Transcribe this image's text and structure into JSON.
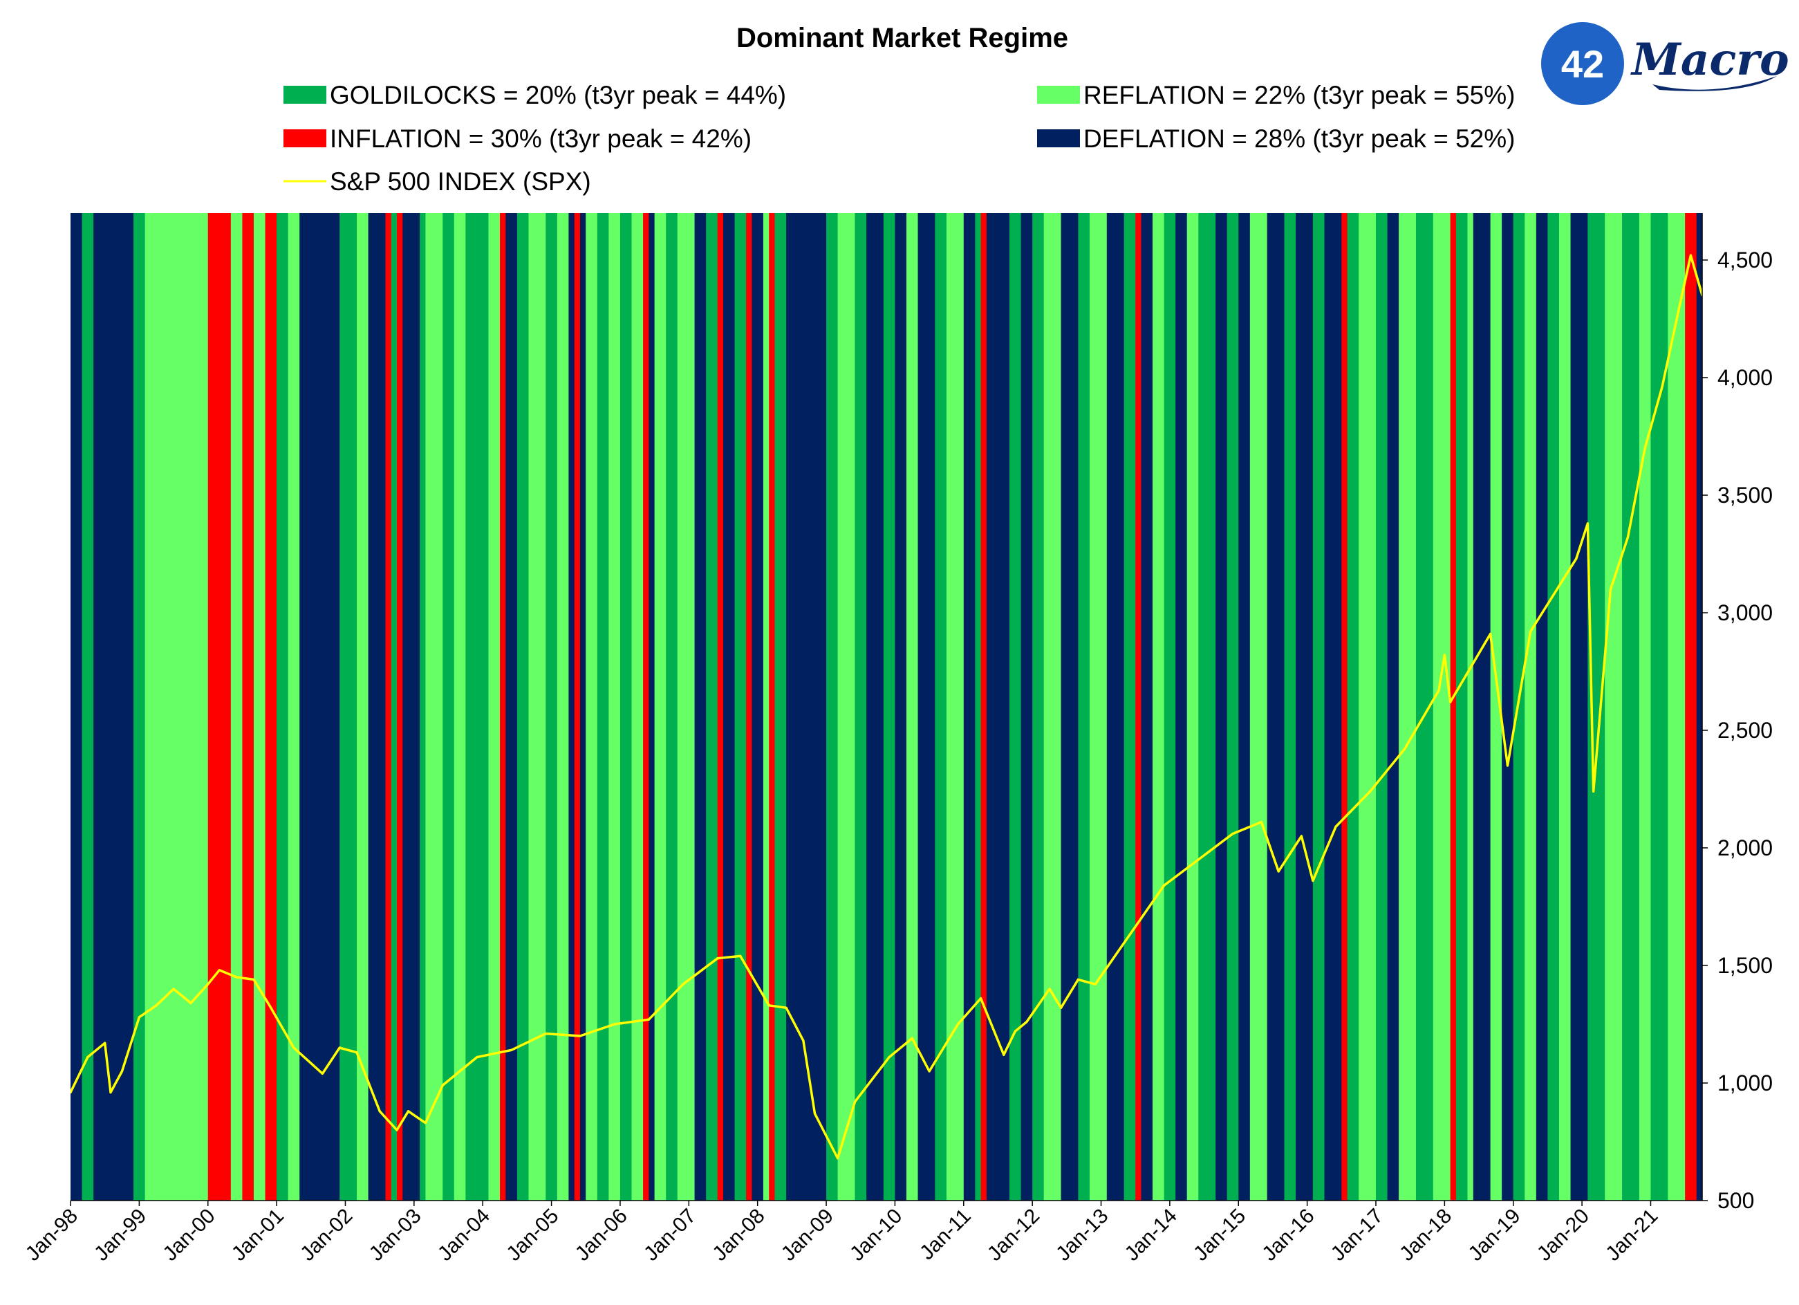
{
  "logo": {
    "badge": "42",
    "wordmark": "Macro"
  },
  "chart_data": {
    "type": "line",
    "title": "Dominant Market Regime",
    "xlabel": "",
    "ylabel": "",
    "y_axis_side": "right",
    "ylim": [
      500,
      4700
    ],
    "x_range": [
      "1998-01",
      "2021-10"
    ],
    "yticks": [
      "4,500",
      "4,000",
      "3,500",
      "3,000",
      "2,500",
      "2,000",
      "1,500",
      "1,000",
      "500"
    ],
    "ytick_values": [
      4500,
      4000,
      3500,
      3000,
      2500,
      2000,
      1500,
      1000,
      500
    ],
    "xticks": [
      "Jan-98",
      "Jan-99",
      "Jan-00",
      "Jan-01",
      "Jan-02",
      "Jan-03",
      "Jan-04",
      "Jan-05",
      "Jan-06",
      "Jan-07",
      "Jan-08",
      "Jan-09",
      "Jan-10",
      "Jan-11",
      "Jan-12",
      "Jan-13",
      "Jan-14",
      "Jan-15",
      "Jan-16",
      "Jan-17",
      "Jan-18",
      "Jan-19",
      "Jan-20",
      "Jan-21"
    ],
    "legend": [
      {
        "key": "goldilocks",
        "label": "GOLDILOCKS = 20% (t3yr peak = 44%)",
        "color": "#00b050",
        "kind": "box"
      },
      {
        "key": "reflation",
        "label": "REFLATION = 22% (t3yr peak = 55%)",
        "color": "#66ff66",
        "kind": "box"
      },
      {
        "key": "inflation",
        "label": "INFLATION = 30% (t3yr peak = 42%)",
        "color": "#ff0000",
        "kind": "box"
      },
      {
        "key": "deflation",
        "label": "DEFLATION = 28% (t3yr peak = 52%)",
        "color": "#002060",
        "kind": "box"
      },
      {
        "key": "spx",
        "label": "S&P 500 INDEX (SPX)",
        "color": "#ffff00",
        "kind": "line"
      }
    ],
    "regime_colors": {
      "G": "#00b050",
      "R": "#66ff66",
      "I": "#ff0000",
      "D": "#002060"
    },
    "regimes": [
      [
        "1998-01",
        "D"
      ],
      [
        "1998-03",
        "G"
      ],
      [
        "1998-05",
        "D"
      ],
      [
        "1998-06",
        "D"
      ],
      [
        "1998-09",
        "D"
      ],
      [
        "1998-12",
        "G"
      ],
      [
        "1999-02",
        "R"
      ],
      [
        "1999-06",
        "R"
      ],
      [
        "1999-09",
        "R"
      ],
      [
        "2000-01",
        "I"
      ],
      [
        "2000-03",
        "I"
      ],
      [
        "2000-05",
        "R"
      ],
      [
        "2000-07",
        "I"
      ],
      [
        "2000-09",
        "R"
      ],
      [
        "2000-11",
        "I"
      ],
      [
        "2001-01",
        "G"
      ],
      [
        "2001-03",
        "R"
      ],
      [
        "2001-05",
        "D"
      ],
      [
        "2001-09",
        "D"
      ],
      [
        "2001-12",
        "G"
      ],
      [
        "2002-03",
        "R"
      ],
      [
        "2002-05",
        "D"
      ],
      [
        "2002-08",
        "I"
      ],
      [
        "2002-09",
        "G"
      ],
      [
        "2002-10",
        "I"
      ],
      [
        "2002-11",
        "D"
      ],
      [
        "2003-02",
        "G"
      ],
      [
        "2003-03",
        "R"
      ],
      [
        "2003-06",
        "G"
      ],
      [
        "2003-08",
        "R"
      ],
      [
        "2003-10",
        "G"
      ],
      [
        "2004-02",
        "R"
      ],
      [
        "2004-04",
        "I"
      ],
      [
        "2004-05",
        "D"
      ],
      [
        "2004-07",
        "G"
      ],
      [
        "2004-09",
        "R"
      ],
      [
        "2004-12",
        "G"
      ],
      [
        "2005-02",
        "R"
      ],
      [
        "2005-04",
        "D"
      ],
      [
        "2005-05",
        "I"
      ],
      [
        "2005-06",
        "D"
      ],
      [
        "2005-07",
        "R"
      ],
      [
        "2005-09",
        "G"
      ],
      [
        "2005-11",
        "R"
      ],
      [
        "2006-01",
        "G"
      ],
      [
        "2006-03",
        "R"
      ],
      [
        "2006-05",
        "I"
      ],
      [
        "2006-06",
        "D"
      ],
      [
        "2006-07",
        "R"
      ],
      [
        "2006-09",
        "G"
      ],
      [
        "2006-11",
        "R"
      ],
      [
        "2007-02",
        "D"
      ],
      [
        "2007-04",
        "G"
      ],
      [
        "2007-06",
        "I"
      ],
      [
        "2007-07",
        "D"
      ],
      [
        "2007-09",
        "G"
      ],
      [
        "2007-11",
        "I"
      ],
      [
        "2007-12",
        "D"
      ],
      [
        "2008-02",
        "R"
      ],
      [
        "2008-03",
        "I"
      ],
      [
        "2008-04",
        "G"
      ],
      [
        "2008-06",
        "D"
      ],
      [
        "2008-09",
        "D"
      ],
      [
        "2009-01",
        "G"
      ],
      [
        "2009-03",
        "R"
      ],
      [
        "2009-06",
        "G"
      ],
      [
        "2009-08",
        "D"
      ],
      [
        "2009-11",
        "G"
      ],
      [
        "2010-01",
        "D"
      ],
      [
        "2010-03",
        "R"
      ],
      [
        "2010-05",
        "D"
      ],
      [
        "2010-08",
        "G"
      ],
      [
        "2010-10",
        "R"
      ],
      [
        "2011-01",
        "D"
      ],
      [
        "2011-03",
        "G"
      ],
      [
        "2011-04",
        "I"
      ],
      [
        "2011-05",
        "D"
      ],
      [
        "2011-09",
        "G"
      ],
      [
        "2011-11",
        "D"
      ],
      [
        "2012-01",
        "G"
      ],
      [
        "2012-03",
        "R"
      ],
      [
        "2012-06",
        "D"
      ],
      [
        "2012-09",
        "G"
      ],
      [
        "2012-11",
        "R"
      ],
      [
        "2013-02",
        "D"
      ],
      [
        "2013-05",
        "G"
      ],
      [
        "2013-07",
        "I"
      ],
      [
        "2013-08",
        "D"
      ],
      [
        "2013-10",
        "R"
      ],
      [
        "2013-12",
        "G"
      ],
      [
        "2014-02",
        "D"
      ],
      [
        "2014-04",
        "R"
      ],
      [
        "2014-06",
        "G"
      ],
      [
        "2014-09",
        "D"
      ],
      [
        "2014-11",
        "G"
      ],
      [
        "2015-01",
        "D"
      ],
      [
        "2015-03",
        "R"
      ],
      [
        "2015-06",
        "D"
      ],
      [
        "2015-09",
        "G"
      ],
      [
        "2015-11",
        "D"
      ],
      [
        "2016-02",
        "G"
      ],
      [
        "2016-04",
        "D"
      ],
      [
        "2016-07",
        "I"
      ],
      [
        "2016-08",
        "G"
      ],
      [
        "2016-10",
        "R"
      ],
      [
        "2017-01",
        "G"
      ],
      [
        "2017-03",
        "D"
      ],
      [
        "2017-05",
        "R"
      ],
      [
        "2017-08",
        "G"
      ],
      [
        "2017-11",
        "R"
      ],
      [
        "2018-02",
        "I"
      ],
      [
        "2018-03",
        "G"
      ],
      [
        "2018-05",
        "R"
      ],
      [
        "2018-06",
        "D"
      ],
      [
        "2018-09",
        "R"
      ],
      [
        "2018-11",
        "D"
      ],
      [
        "2019-01",
        "G"
      ],
      [
        "2019-03",
        "R"
      ],
      [
        "2019-05",
        "D"
      ],
      [
        "2019-07",
        "G"
      ],
      [
        "2019-09",
        "R"
      ],
      [
        "2019-11",
        "D"
      ],
      [
        "2020-02",
        "G"
      ],
      [
        "2020-05",
        "R"
      ],
      [
        "2020-08",
        "G"
      ],
      [
        "2020-11",
        "R"
      ],
      [
        "2021-01",
        "G"
      ],
      [
        "2021-04",
        "R"
      ],
      [
        "2021-07",
        "I"
      ],
      [
        "2021-09",
        "D"
      ]
    ],
    "series": [
      {
        "name": "S&P 500 INDEX (SPX)",
        "color": "#ffff00",
        "x": [
          "1998-01",
          "1998-04",
          "1998-07",
          "1998-08",
          "1998-10",
          "1999-01",
          "1999-04",
          "1999-07",
          "1999-10",
          "2000-01",
          "2000-03",
          "2000-06",
          "2000-09",
          "2000-12",
          "2001-04",
          "2001-09",
          "2001-12",
          "2002-03",
          "2002-07",
          "2002-10",
          "2002-12",
          "2003-03",
          "2003-06",
          "2003-12",
          "2004-06",
          "2004-12",
          "2005-06",
          "2005-12",
          "2006-06",
          "2006-12",
          "2007-06",
          "2007-10",
          "2008-03",
          "2008-06",
          "2008-09",
          "2008-11",
          "2009-03",
          "2009-06",
          "2009-12",
          "2010-04",
          "2010-07",
          "2010-12",
          "2011-04",
          "2011-08",
          "2011-10",
          "2011-12",
          "2012-04",
          "2012-06",
          "2012-09",
          "2012-12",
          "2013-06",
          "2013-12",
          "2014-06",
          "2014-12",
          "2015-05",
          "2015-08",
          "2015-12",
          "2016-02",
          "2016-06",
          "2016-12",
          "2017-06",
          "2017-12",
          "2018-01",
          "2018-02",
          "2018-09",
          "2018-12",
          "2019-04",
          "2019-12",
          "2020-02",
          "2020-03",
          "2020-06",
          "2020-09",
          "2020-12",
          "2021-03",
          "2021-06",
          "2021-08",
          "2021-10"
        ],
        "values": [
          960,
          1110,
          1170,
          960,
          1050,
          1280,
          1330,
          1400,
          1340,
          1420,
          1480,
          1450,
          1440,
          1320,
          1150,
          1040,
          1150,
          1130,
          880,
          800,
          880,
          830,
          990,
          1110,
          1140,
          1210,
          1200,
          1250,
          1270,
          1420,
          1530,
          1540,
          1330,
          1320,
          1180,
          870,
          680,
          920,
          1110,
          1190,
          1050,
          1250,
          1360,
          1120,
          1220,
          1260,
          1400,
          1320,
          1440,
          1420,
          1630,
          1840,
          1950,
          2060,
          2110,
          1900,
          2050,
          1860,
          2090,
          2240,
          2420,
          2670,
          2820,
          2620,
          2910,
          2350,
          2920,
          3230,
          3380,
          2240,
          3100,
          3320,
          3700,
          3960,
          4300,
          4520,
          4350
        ]
      }
    ]
  }
}
